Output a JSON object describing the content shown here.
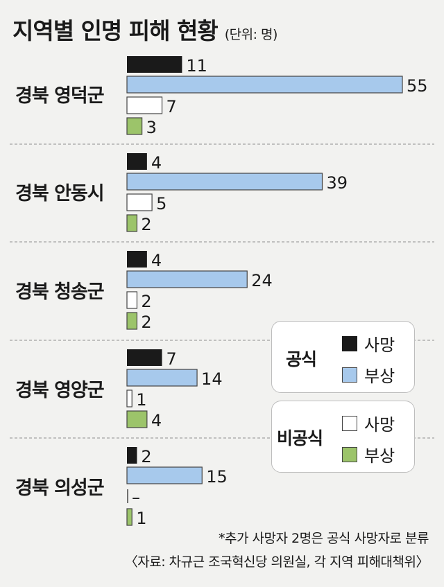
{
  "title": "지역별 인명 피해 현황",
  "unit": "(단위: 명)",
  "colors": {
    "official_death": "#1a1a1a",
    "official_injury": "#a7c9ec",
    "unofficial_death": "#ffffff",
    "unofficial_injury": "#9cc46a",
    "outline": "#444444"
  },
  "legend": {
    "groups": [
      {
        "label": "공식",
        "items": [
          {
            "label": "사망",
            "series": 0
          },
          {
            "label": "부상",
            "series": 1
          }
        ]
      },
      {
        "label": "비공식",
        "items": [
          {
            "label": "사망",
            "series": 2
          },
          {
            "label": "부상",
            "series": 3
          }
        ]
      }
    ]
  },
  "chart_data": {
    "type": "bar",
    "orientation": "horizontal",
    "categories": [
      "경북 영덕군",
      "경북 안동시",
      "경북 청송군",
      "경북 영양군",
      "경북 의성군"
    ],
    "series": [
      {
        "name": "공식 사망",
        "values": [
          11,
          4,
          4,
          7,
          2
        ]
      },
      {
        "name": "공식 부상",
        "values": [
          55,
          39,
          24,
          14,
          15
        ]
      },
      {
        "name": "비공식 사망",
        "values": [
          7,
          5,
          2,
          1,
          null
        ]
      },
      {
        "name": "비공식 부상",
        "values": [
          3,
          2,
          2,
          4,
          1
        ]
      }
    ],
    "value_labels": [
      [
        "11",
        "55",
        "7",
        "3"
      ],
      [
        "4",
        "39",
        "5",
        "2"
      ],
      [
        "4",
        "24",
        "2",
        "2"
      ],
      [
        "7",
        "14",
        "1",
        "4"
      ],
      [
        "2",
        "15",
        "–",
        "1"
      ]
    ],
    "xlim": [
      0,
      55
    ],
    "grid": false,
    "legend_position": "bottom-right"
  },
  "footnote": "*추가 사망자 2명은 공식 사망자로 분류",
  "source": "〈자료: 차규근 조국혁신당 의원실, 각 지역 피해대책위〉"
}
